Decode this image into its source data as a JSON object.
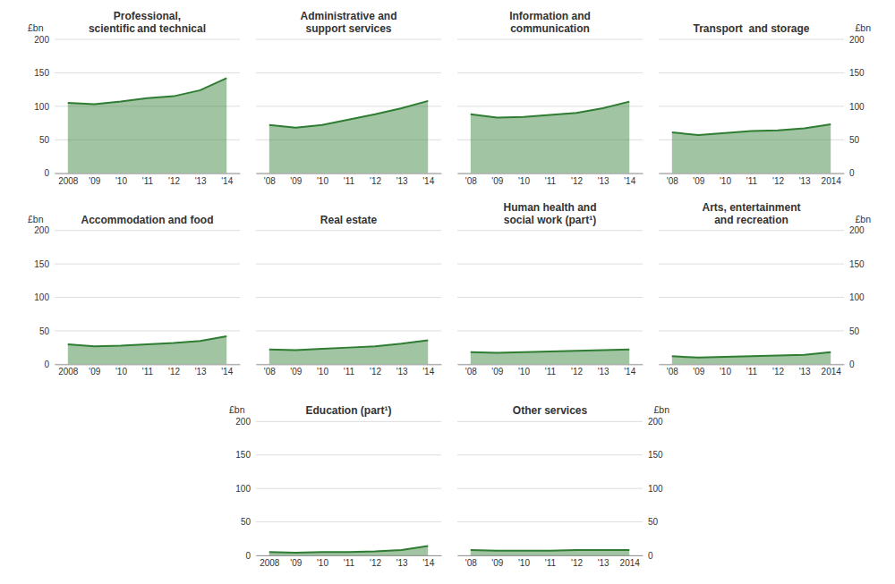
{
  "chart_data": [
    {
      "type": "area",
      "title": "Professional,\nscientific and technical",
      "x": [
        2008,
        2009,
        2010,
        2011,
        2012,
        2013,
        2014
      ],
      "values": [
        105,
        103,
        107,
        112,
        115,
        124,
        142
      ],
      "xlim": [
        2007.5,
        2014.5
      ],
      "xticks": [
        {
          "value": 2008,
          "label": "2008"
        },
        {
          "value": 2009,
          "label": "'09"
        },
        {
          "value": 2010,
          "label": "'10"
        },
        {
          "value": 2011,
          "label": "'11"
        },
        {
          "value": 2012,
          "label": "'12"
        },
        {
          "value": 2013,
          "label": "'13"
        },
        {
          "value": 2014,
          "label": "'14"
        }
      ],
      "ylim": [
        0,
        200
      ],
      "yticks": [
        0,
        50,
        100,
        150,
        200
      ],
      "ylabel": "£bn",
      "grid": true,
      "color": "#2e7d32"
    },
    {
      "type": "area",
      "title": "Administrative and\nsupport services",
      "x": [
        2008,
        2009,
        2010,
        2011,
        2012,
        2013,
        2014
      ],
      "values": [
        72,
        68,
        72,
        80,
        88,
        97,
        108
      ],
      "xlim": [
        2007.5,
        2014.5
      ],
      "xticks": [
        {
          "value": 2008,
          "label": "'08"
        },
        {
          "value": 2009,
          "label": "'09"
        },
        {
          "value": 2010,
          "label": "'10"
        },
        {
          "value": 2011,
          "label": "'11"
        },
        {
          "value": 2012,
          "label": "'12"
        },
        {
          "value": 2013,
          "label": "'13"
        },
        {
          "value": 2014,
          "label": "'14"
        }
      ],
      "ylim": [
        0,
        200
      ],
      "yticks": [
        0,
        50,
        100,
        150,
        200
      ],
      "tick_labels": "x",
      "grid": true,
      "color": "#2e7d32"
    },
    {
      "type": "area",
      "title": "Information and\ncommunication",
      "x": [
        2008,
        2009,
        2010,
        2011,
        2012,
        2013,
        2014
      ],
      "values": [
        88,
        83,
        84,
        87,
        90,
        97,
        107
      ],
      "xlim": [
        2007.5,
        2014.5
      ],
      "xticks": [
        {
          "value": 2008,
          "label": "'08"
        },
        {
          "value": 2009,
          "label": "'09"
        },
        {
          "value": 2010,
          "label": "'10"
        },
        {
          "value": 2011,
          "label": "'11"
        },
        {
          "value": 2012,
          "label": "'12"
        },
        {
          "value": 2013,
          "label": "'13"
        },
        {
          "value": 2014,
          "label": "'14"
        }
      ],
      "ylim": [
        0,
        200
      ],
      "yticks": [
        0,
        50,
        100,
        150,
        200
      ],
      "tick_labels": "x",
      "grid": true,
      "color": "#2e7d32"
    },
    {
      "type": "area",
      "title": "Transport  and storage",
      "x": [
        2008,
        2009,
        2010,
        2011,
        2012,
        2013,
        2014
      ],
      "values": [
        61,
        57,
        60,
        63,
        64,
        67,
        73
      ],
      "xlim": [
        2007.5,
        2014.5
      ],
      "xticks": [
        {
          "value": 2008,
          "label": "'08"
        },
        {
          "value": 2009,
          "label": "'09"
        },
        {
          "value": 2010,
          "label": "'10"
        },
        {
          "value": 2011,
          "label": "'11"
        },
        {
          "value": 2012,
          "label": "'12"
        },
        {
          "value": 2013,
          "label": "'13"
        },
        {
          "value": 2014,
          "label": "2014"
        }
      ],
      "ylim": [
        0,
        200
      ],
      "yticks": [
        0,
        50,
        100,
        150,
        200
      ],
      "ylabel": "£bn",
      "grid": true,
      "color": "#2e7d32"
    },
    {
      "type": "area",
      "title": "Accommodation and food",
      "x": [
        2008,
        2009,
        2010,
        2011,
        2012,
        2013,
        2014
      ],
      "values": [
        30,
        27,
        28,
        30,
        32,
        35,
        42
      ],
      "xlim": [
        2007.5,
        2014.5
      ],
      "xticks": [
        {
          "value": 2008,
          "label": "2008"
        },
        {
          "value": 2009,
          "label": "'09"
        },
        {
          "value": 2010,
          "label": "'10"
        },
        {
          "value": 2011,
          "label": "'11"
        },
        {
          "value": 2012,
          "label": "'12"
        },
        {
          "value": 2013,
          "label": "'13"
        },
        {
          "value": 2014,
          "label": "'14"
        }
      ],
      "ylim": [
        0,
        200
      ],
      "yticks": [
        0,
        50,
        100,
        150,
        200
      ],
      "ylabel": "£bn",
      "grid": true,
      "color": "#2e7d32"
    },
    {
      "type": "area",
      "title": "Real estate",
      "x": [
        2008,
        2009,
        2010,
        2011,
        2012,
        2013,
        2014
      ],
      "values": [
        22,
        21,
        23,
        25,
        27,
        31,
        36
      ],
      "xlim": [
        2007.5,
        2014.5
      ],
      "xticks": [
        {
          "value": 2008,
          "label": "'08"
        },
        {
          "value": 2009,
          "label": "'09"
        },
        {
          "value": 2010,
          "label": "'10"
        },
        {
          "value": 2011,
          "label": "'11"
        },
        {
          "value": 2012,
          "label": "'12"
        },
        {
          "value": 2013,
          "label": "'13"
        },
        {
          "value": 2014,
          "label": "'14"
        }
      ],
      "ylim": [
        0,
        200
      ],
      "yticks": [
        0,
        50,
        100,
        150,
        200
      ],
      "tick_labels": "x",
      "grid": true,
      "color": "#2e7d32"
    },
    {
      "type": "area",
      "title": "Human health and\nsocial work (part¹)",
      "x": [
        2008,
        2009,
        2010,
        2011,
        2012,
        2013,
        2014
      ],
      "values": [
        18,
        17,
        18,
        19,
        20,
        21,
        22
      ],
      "xlim": [
        2007.5,
        2014.5
      ],
      "xticks": [
        {
          "value": 2008,
          "label": "'08"
        },
        {
          "value": 2009,
          "label": "'09"
        },
        {
          "value": 2010,
          "label": "'10"
        },
        {
          "value": 2011,
          "label": "'11"
        },
        {
          "value": 2012,
          "label": "'12"
        },
        {
          "value": 2013,
          "label": "'13"
        },
        {
          "value": 2014,
          "label": "'14"
        }
      ],
      "ylim": [
        0,
        200
      ],
      "yticks": [
        0,
        50,
        100,
        150,
        200
      ],
      "tick_labels": "x",
      "grid": true,
      "color": "#2e7d32"
    },
    {
      "type": "area",
      "title": "Arts, entertainment\nand recreation",
      "x": [
        2008,
        2009,
        2010,
        2011,
        2012,
        2013,
        2014
      ],
      "values": [
        12,
        10,
        11,
        12,
        13,
        14,
        18
      ],
      "xlim": [
        2007.5,
        2014.5
      ],
      "xticks": [
        {
          "value": 2008,
          "label": "'08"
        },
        {
          "value": 2009,
          "label": "'09"
        },
        {
          "value": 2010,
          "label": "'10"
        },
        {
          "value": 2011,
          "label": "'11"
        },
        {
          "value": 2012,
          "label": "'12"
        },
        {
          "value": 2013,
          "label": "'13"
        },
        {
          "value": 2014,
          "label": "2014"
        }
      ],
      "ylim": [
        0,
        200
      ],
      "yticks": [
        0,
        50,
        100,
        150,
        200
      ],
      "ylabel": "£bn",
      "grid": true,
      "color": "#2e7d32"
    },
    {
      "type": "area",
      "title": "Education (part¹)",
      "x": [
        2008,
        2009,
        2010,
        2011,
        2012,
        2013,
        2014
      ],
      "values": [
        5,
        4,
        5,
        5,
        6,
        8,
        14
      ],
      "xlim": [
        2007.5,
        2014.5
      ],
      "xticks": [
        {
          "value": 2008,
          "label": "2008"
        },
        {
          "value": 2009,
          "label": "'09"
        },
        {
          "value": 2010,
          "label": "'10"
        },
        {
          "value": 2011,
          "label": "'11"
        },
        {
          "value": 2012,
          "label": "'12"
        },
        {
          "value": 2013,
          "label": "'13"
        },
        {
          "value": 2014,
          "label": "'14"
        }
      ],
      "ylim": [
        0,
        200
      ],
      "yticks": [
        0,
        50,
        100,
        150,
        200
      ],
      "ylabel": "£bn",
      "grid": true,
      "color": "#2e7d32"
    },
    {
      "type": "area",
      "title": "Other services",
      "x": [
        2008,
        2009,
        2010,
        2011,
        2012,
        2013,
        2014
      ],
      "values": [
        8,
        7,
        7,
        7,
        8,
        8,
        8
      ],
      "xlim": [
        2007.5,
        2014.5
      ],
      "xticks": [
        {
          "value": 2008,
          "label": "'08"
        },
        {
          "value": 2009,
          "label": "'09"
        },
        {
          "value": 2010,
          "label": "'10"
        },
        {
          "value": 2011,
          "label": "'11"
        },
        {
          "value": 2012,
          "label": "'12"
        },
        {
          "value": 2013,
          "label": "'13"
        },
        {
          "value": 2014,
          "label": "2014"
        }
      ],
      "ylim": [
        0,
        200
      ],
      "yticks": [
        0,
        50,
        100,
        150,
        200
      ],
      "ylabel": "£bn",
      "grid": true,
      "color": "#2e7d32"
    }
  ]
}
